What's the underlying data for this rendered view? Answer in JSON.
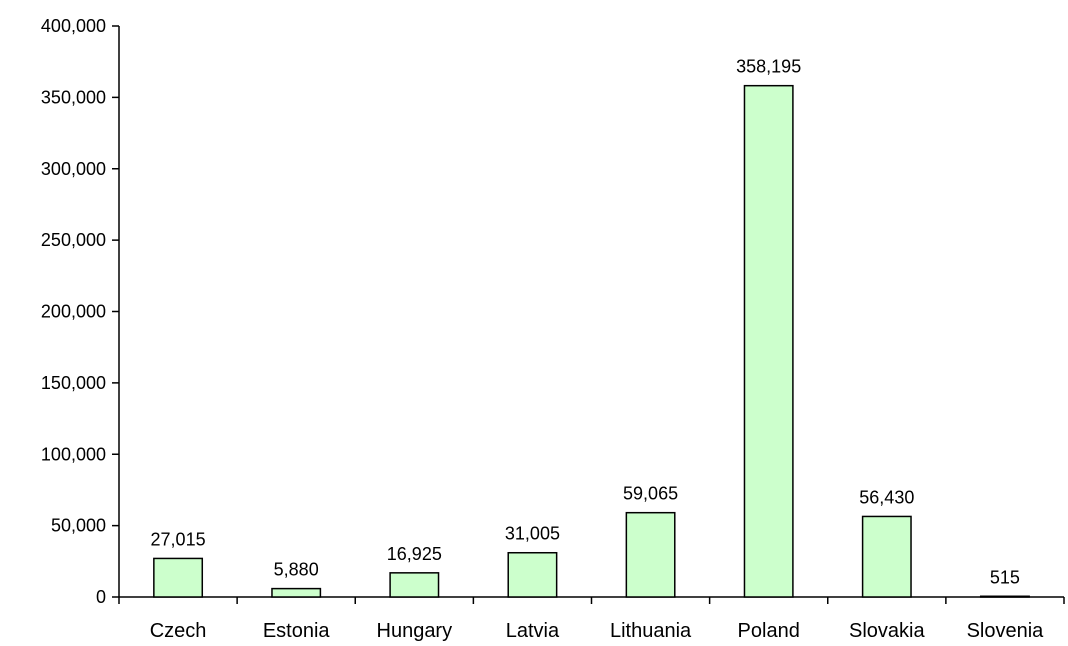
{
  "chart_data": {
    "type": "bar",
    "title": "",
    "xlabel": "",
    "ylabel": "",
    "categories": [
      "Czech",
      "Estonia",
      "Hungary",
      "Latvia",
      "Lithuania",
      "Poland",
      "Slovakia",
      "Slovenia"
    ],
    "values": [
      27015,
      5880,
      16925,
      31005,
      59065,
      358195,
      56430,
      515
    ],
    "data_labels": [
      "27,015",
      "5,880",
      "16,925",
      "31,005",
      "59,065",
      "358,195",
      "56,430",
      "515"
    ],
    "ylim": [
      0,
      400000
    ],
    "yticks": [
      0,
      50000,
      100000,
      150000,
      200000,
      250000,
      300000,
      350000,
      400000
    ],
    "ytick_labels": [
      "0",
      "50,000",
      "100,000",
      "150,000",
      "200,000",
      "250,000",
      "300,000",
      "350,000",
      "400,000"
    ],
    "grid": false,
    "legend": "none",
    "bar_fill": "#ccffcc",
    "bar_stroke": "#000000"
  }
}
